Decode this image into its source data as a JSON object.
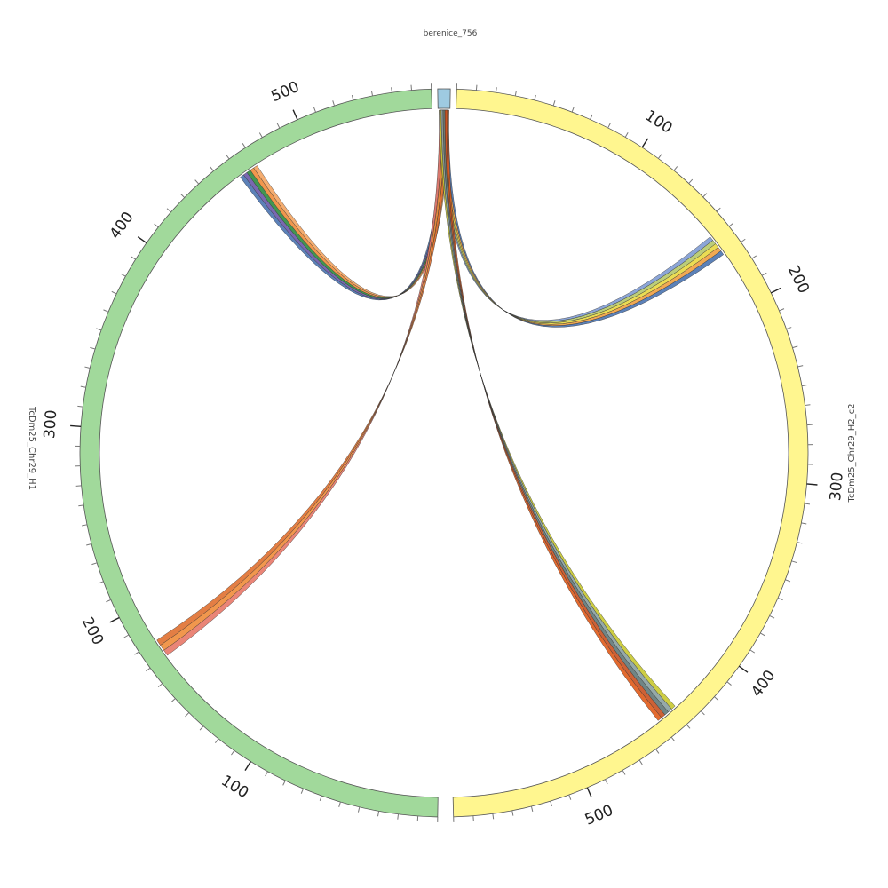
{
  "chart_data": {
    "type": "chord",
    "title": "",
    "contigs": [
      {
        "name": "berenice_756",
        "length": 8,
        "color": "#9ecae1"
      },
      {
        "name": "TcDm25_Chr29_H2_c2",
        "length": 570,
        "color": "#fff68f"
      },
      {
        "name": "TcDm25_Chr29_H1",
        "length": 570,
        "color": "#a1d99b"
      }
    ],
    "ribbons": [
      {
        "source": "berenice_756",
        "target": "TcDm25_Chr29_H1",
        "target_range": [
          459,
          470
        ],
        "colors": [
          "#4a73b0",
          "#6a58a8",
          "#2e8b3e",
          "#f08c3a",
          "#f4a460"
        ]
      },
      {
        "source": "berenice_756",
        "target": "TcDm25_Chr29_H2_c2",
        "target_range": [
          158,
          170
        ],
        "colors": [
          "#7e9bd3",
          "#b5c86a",
          "#e8d840",
          "#f0a040",
          "#4a73b0"
        ]
      },
      {
        "source": "berenice_756",
        "target": "TcDm25_Chr29_H1",
        "target_range": [
          170,
          180
        ],
        "colors": [
          "#e87868",
          "#f08c3a",
          "#e07030"
        ]
      },
      {
        "source": "berenice_756",
        "target": "TcDm25_Chr29_H2_c2",
        "target_range": [
          438,
          450
        ],
        "colors": [
          "#c8c830",
          "#8aa0a0",
          "#607878",
          "#c85020",
          "#e05a18"
        ]
      }
    ]
  },
  "labels": {
    "top": "berenice_756",
    "right": "TcDm25_Chr29_H2_c2",
    "left": "TcDm25_Chr29_H1"
  },
  "tick_numbers": {
    "right": [
      "100",
      "200",
      "300",
      "400",
      "500"
    ],
    "left": [
      "100",
      "200",
      "300",
      "400",
      "500"
    ]
  }
}
